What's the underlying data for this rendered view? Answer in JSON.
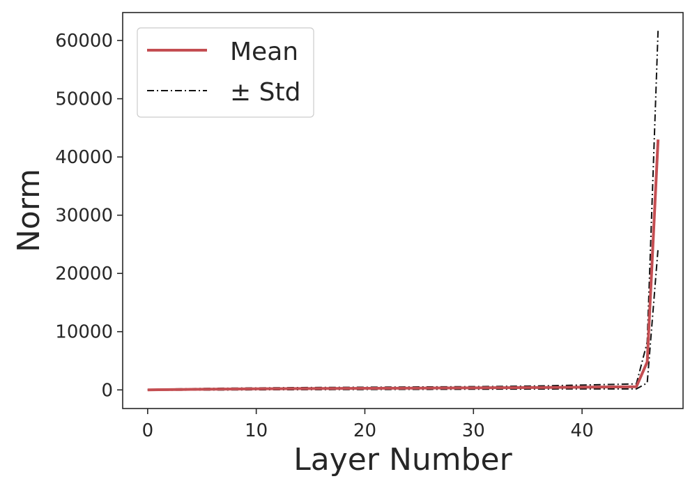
{
  "chart_data": {
    "type": "line",
    "title": "",
    "xlabel": "Layer Number",
    "ylabel": "Norm",
    "xlim": [
      -2.3,
      49.3
    ],
    "ylim": [
      -3200,
      64800
    ],
    "x_ticks": [
      0,
      10,
      20,
      30,
      40
    ],
    "y_ticks": [
      0,
      10000,
      20000,
      30000,
      40000,
      50000,
      60000
    ],
    "grid": false,
    "legend": {
      "placement": "top-left"
    },
    "colors": {
      "mean": "#c44e52",
      "std": "#111111"
    },
    "x": [
      0,
      1,
      2,
      3,
      4,
      5,
      6,
      7,
      8,
      9,
      10,
      11,
      12,
      13,
      14,
      15,
      16,
      17,
      18,
      19,
      20,
      21,
      22,
      23,
      24,
      25,
      26,
      27,
      28,
      29,
      30,
      31,
      32,
      33,
      34,
      35,
      36,
      37,
      38,
      39,
      40,
      41,
      42,
      43,
      44,
      45,
      46,
      47
    ],
    "series": [
      {
        "name": "Mean",
        "style": "solid",
        "values": [
          10,
          30,
          50,
          70,
          90,
          110,
          125,
          140,
          155,
          170,
          180,
          190,
          200,
          210,
          220,
          228,
          236,
          244,
          252,
          260,
          268,
          276,
          284,
          292,
          300,
          308,
          316,
          324,
          332,
          340,
          350,
          360,
          370,
          380,
          390,
          400,
          410,
          420,
          435,
          450,
          465,
          480,
          495,
          510,
          525,
          540,
          4800,
          43000
        ]
      },
      {
        "name": "± Std",
        "style": "dashdot",
        "values": [
          60,
          100,
          140,
          180,
          210,
          240,
          260,
          280,
          300,
          320,
          335,
          350,
          365,
          380,
          395,
          405,
          415,
          425,
          435,
          445,
          455,
          465,
          475,
          485,
          495,
          505,
          515,
          525,
          535,
          545,
          560,
          575,
          590,
          610,
          630,
          650,
          680,
          710,
          750,
          790,
          830,
          870,
          910,
          950,
          990,
          1030,
          8200,
          61800
        ]
      },
      {
        "name": "",
        "style": "dashdot",
        "values": [
          -40,
          -40,
          -40,
          -40,
          -30,
          -30,
          -20,
          -10,
          0,
          10,
          20,
          25,
          30,
          35,
          40,
          45,
          50,
          55,
          60,
          65,
          70,
          75,
          80,
          85,
          90,
          95,
          100,
          105,
          110,
          115,
          120,
          125,
          130,
          135,
          140,
          145,
          150,
          155,
          160,
          160,
          160,
          160,
          160,
          160,
          160,
          160,
          1200,
          24300
        ]
      }
    ],
    "legend_entries": [
      "Mean",
      "± Std"
    ]
  }
}
